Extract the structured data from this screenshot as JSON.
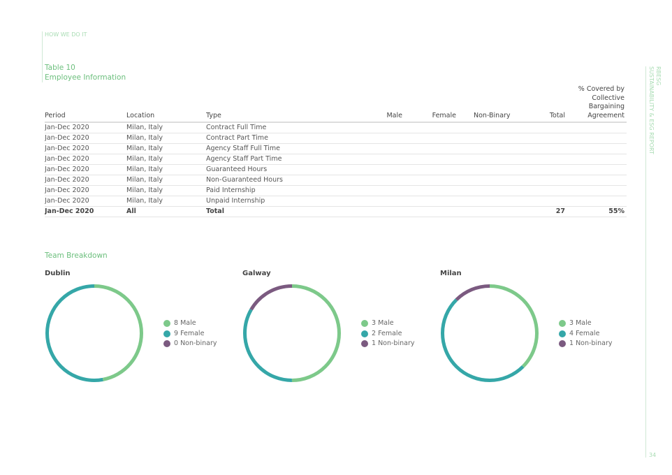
{
  "header": {
    "section": "HOW WE DO IT",
    "table_number": "Table 10",
    "table_title": "Employee Information"
  },
  "sidebar": {
    "brand": "RBESG",
    "report": "SUSTAINABILITY & ESG REPORT",
    "page_number": "34"
  },
  "table": {
    "columns": [
      "Period",
      "Location",
      "Type",
      "Male",
      "Female",
      "Non-Binary",
      "Total",
      "% Covered by Collective Bargaining Agreement"
    ],
    "rows": [
      [
        "Jan-Dec 2020",
        "Milan, Italy",
        "Contract Full Time",
        "",
        "",
        "",
        "",
        ""
      ],
      [
        "Jan-Dec 2020",
        "Milan, Italy",
        "Contract Part Time",
        "",
        "",
        "",
        "",
        ""
      ],
      [
        "Jan-Dec 2020",
        "Milan, Italy",
        "Agency Staff Full Time",
        "",
        "",
        "",
        "",
        ""
      ],
      [
        "Jan-Dec 2020",
        "Milan, Italy",
        "Agency Staff Part Time",
        "",
        "",
        "",
        "",
        ""
      ],
      [
        "Jan-Dec 2020",
        "Milan, Italy",
        "Guaranteed Hours",
        "",
        "",
        "",
        "",
        ""
      ],
      [
        "Jan-Dec 2020",
        "Milan, Italy",
        "Non-Guaranteed Hours",
        "",
        "",
        "",
        "",
        ""
      ],
      [
        "Jan-Dec 2020",
        "Milan, Italy",
        "Paid Internship",
        "",
        "",
        "",
        "",
        ""
      ],
      [
        "Jan-Dec 2020",
        "Milan, Italy",
        "Unpaid Internship",
        "",
        "",
        "",
        "",
        ""
      ]
    ],
    "total": [
      "Jan-Dec 2020",
      "All",
      "Total",
      "",
      "",
      "",
      "27",
      "55%"
    ]
  },
  "breakdown": {
    "title": "Team Breakdown",
    "colors": {
      "male": "#7dc98a",
      "female": "#35a7a8",
      "nonbinary": "#7b5a80"
    },
    "cities": [
      {
        "name": "Dublin",
        "male": 8,
        "female": 9,
        "nonbinary": 0,
        "labels": [
          "8 Male",
          "9 Female",
          "0 Non-binary"
        ]
      },
      {
        "name": "Galway",
        "male": 3,
        "female": 2,
        "nonbinary": 1,
        "labels": [
          "3 Male",
          "2 Female",
          "1 Non-binary"
        ]
      },
      {
        "name": "Milan",
        "male": 3,
        "female": 4,
        "nonbinary": 1,
        "labels": [
          "3 Male",
          "4 Female",
          "1 Non-binary"
        ]
      }
    ]
  }
}
